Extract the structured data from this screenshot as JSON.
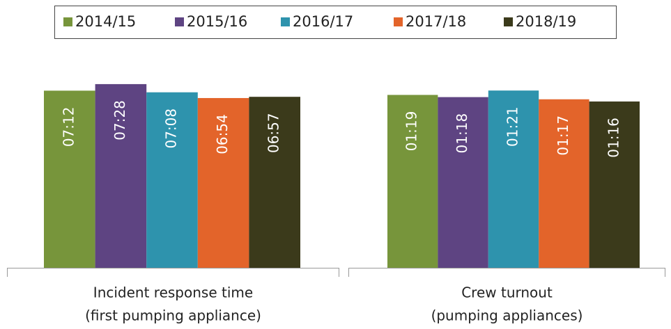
{
  "chart_data": [
    {
      "type": "bar",
      "xlabel": [
        "Incident response time",
        "(first pumping appliance)"
      ],
      "ylim": [
        0,
        475
      ],
      "series": [
        {
          "name": "2014/15",
          "color": "#77953b",
          "values": [
            432
          ],
          "value_labels": [
            "07:12"
          ]
        },
        {
          "name": "2015/16",
          "color": "#5e4482",
          "values": [
            448
          ],
          "value_labels": [
            "07:28"
          ]
        },
        {
          "name": "2016/17",
          "color": "#2e93ad",
          "values": [
            428
          ],
          "value_labels": [
            "07:08"
          ]
        },
        {
          "name": "2017/18",
          "color": "#e3642a",
          "values": [
            414
          ],
          "value_labels": [
            "06:54"
          ]
        },
        {
          "name": "2018/19",
          "color": "#3b3a1b",
          "values": [
            417
          ],
          "value_labels": [
            "06:57"
          ]
        }
      ]
    },
    {
      "type": "bar",
      "xlabel": [
        "Crew turnout",
        "(pumping appliances)"
      ],
      "ylim": [
        0,
        89
      ],
      "series": [
        {
          "color": "#77953b",
          "values": [
            79
          ],
          "value_labels": [
            "01:19"
          ]
        },
        {
          "color": "#5e4482",
          "values": [
            78
          ],
          "value_labels": [
            "01:18"
          ]
        },
        {
          "color": "#2e93ad",
          "values": [
            81
          ],
          "value_labels": [
            "01:21"
          ]
        },
        {
          "color": "#e3642a",
          "values": [
            77
          ],
          "value_labels": [
            "01:17"
          ]
        },
        {
          "color": "#3b3a1b",
          "values": [
            76
          ],
          "value_labels": [
            "01:16"
          ]
        }
      ]
    }
  ]
}
